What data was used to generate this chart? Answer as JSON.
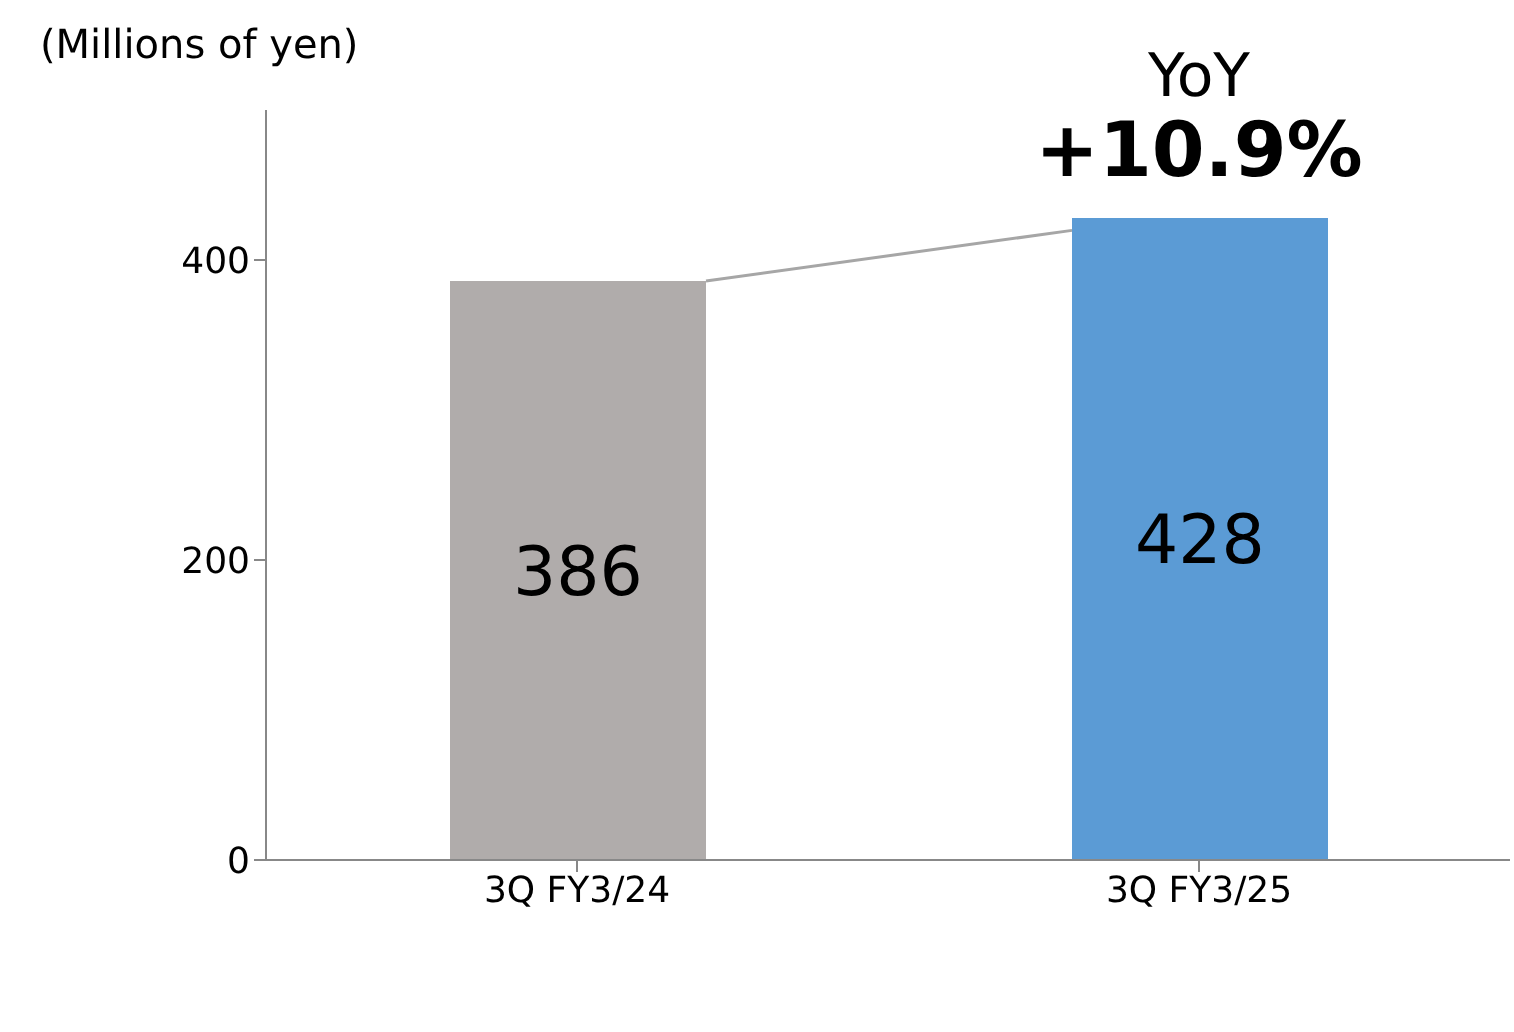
{
  "chart_data": {
    "type": "bar",
    "ylabel": "(Millions of yen)",
    "categories": [
      "3Q FY3/24",
      "3Q FY3/25"
    ],
    "values": [
      386,
      428
    ],
    "colors": [
      "#b0acab",
      "#5b9bd5"
    ],
    "ylim": [
      0,
      500
    ],
    "yticks": [
      0,
      200,
      400
    ],
    "data_labels": true,
    "annotations": [
      "YoY",
      {
        "text": "+10.9%",
        "x": "3Q FY3/25",
        "y": 428
      }
    ]
  }
}
